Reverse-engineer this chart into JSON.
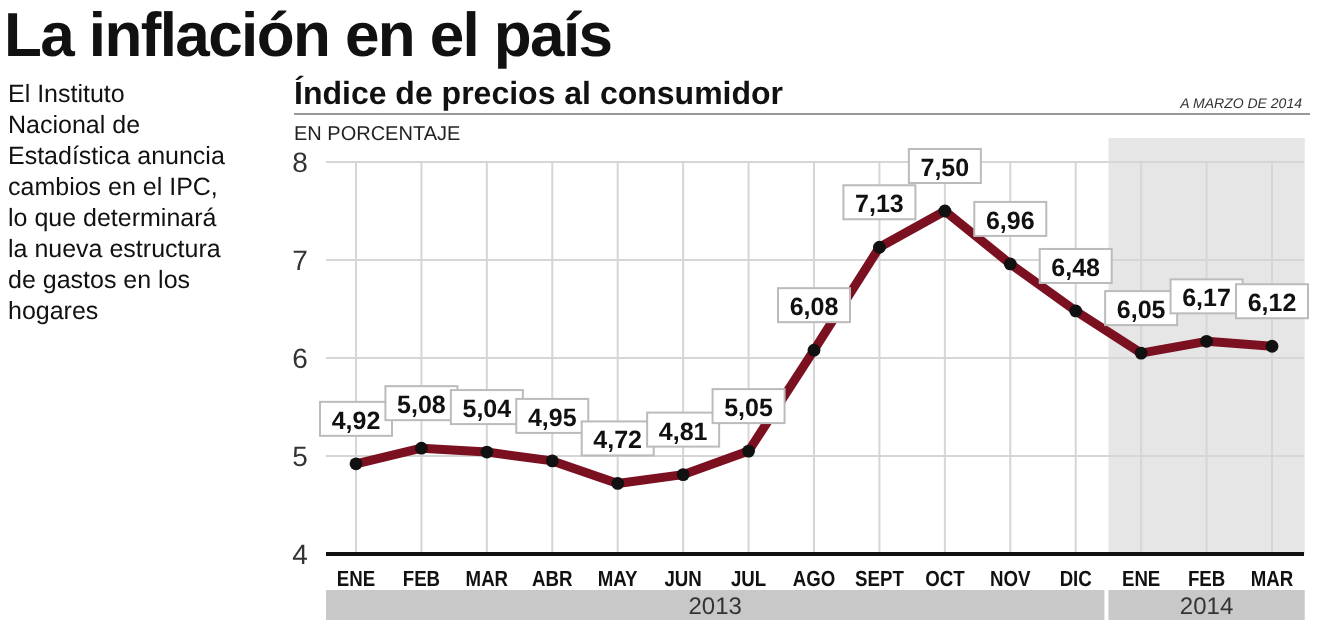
{
  "chart_data": {
    "type": "line",
    "title": "La inflación en el país",
    "subtitle": "Índice de precios al consumidor",
    "ylabel": "EN PORCENTAJE",
    "annotations": [
      "El Instituto Nacional de Estadística anuncia cambios en el IPC, lo que determinará la nueva estructura de gastos en los hogares",
      "A MARZO DE 2014",
      "2013",
      "2014"
    ],
    "categories": [
      "ENE",
      "FEB",
      "MAR",
      "ABR",
      "MAY",
      "JUN",
      "JUL",
      "AGO",
      "SEPT",
      "OCT",
      "NOV",
      "DIC",
      "ENE",
      "FEB",
      "MAR"
    ],
    "series": [
      {
        "color": "#7a1020",
        "values": [
          4.92,
          5.08,
          5.04,
          4.95,
          4.72,
          4.81,
          5.05,
          6.08,
          7.13,
          7.5,
          6.96,
          6.48,
          6.05,
          6.17,
          6.12
        ],
        "value_labels": [
          "4,92",
          "5,08",
          "5,04",
          "4,95",
          "4,72",
          "4,81",
          "5,05",
          "6,08",
          "7,13",
          "7,50",
          "6,96",
          "6,48",
          "6,05",
          "6,17",
          "6,12"
        ]
      }
    ],
    "ylim": [
      4,
      8
    ],
    "yticks": [
      4,
      5,
      6,
      7,
      8
    ],
    "grid": true,
    "marker": "circle",
    "line_style": "solid"
  }
}
